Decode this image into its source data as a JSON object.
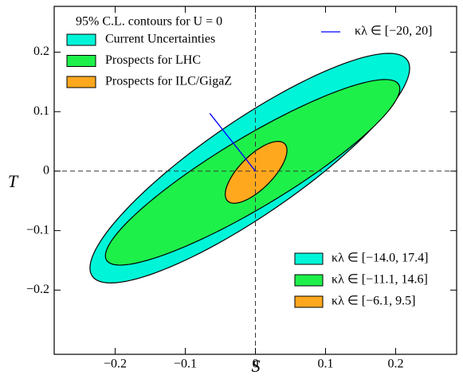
{
  "chart_data": {
    "type": "ellipse",
    "legend_title": "95% C.L. contours for U = 0",
    "xlabel": "S",
    "ylabel": "T",
    "xlim": [
      -0.287,
      0.287
    ],
    "ylim": [
      -0.308,
      0.277
    ],
    "xticks": [
      {
        "value": -0.2,
        "label": "−0.2"
      },
      {
        "value": -0.1,
        "label": "−0.1"
      },
      0,
      0.1,
      0.2
    ],
    "yticks": [
      {
        "value": -0.2,
        "label": "−0.2"
      },
      {
        "value": -0.1,
        "label": "−0.1"
      },
      0,
      0.1,
      0.2
    ],
    "vlines": [
      0
    ],
    "hlines": [
      0
    ],
    "series": [
      {
        "name": "Current Uncertainties",
        "range_label": "κλ ∈ [−14.0, 17.4]",
        "color": "#00f5d8",
        "center": [
          -0.008,
          0.005
        ],
        "sigma_x": 0.228,
        "sigma_y": 0.193,
        "rho": 0.87
      },
      {
        "name": "Prospects for LHC",
        "range_label": "κλ ∈ [−11.1, 14.6]",
        "color": "#1ef04a",
        "center": [
          -0.004,
          -0.002
        ],
        "sigma_x": 0.21,
        "sigma_y": 0.156,
        "rho": 0.9
      },
      {
        "name": "Prospects for ILC/GigaZ",
        "range_label": "κλ ∈ [−6.1, 9.5]",
        "color": "#ffa81e",
        "center": [
          0.001,
          -0.002
        ],
        "sigma_x": 0.044,
        "sigma_y": 0.052,
        "rho": 0.71
      }
    ],
    "line": {
      "name": "κλ ∈ [−20, 20]",
      "color": "#0000ff",
      "x": [
        -0.065,
        0
      ],
      "y": [
        0.097,
        0
      ]
    }
  }
}
